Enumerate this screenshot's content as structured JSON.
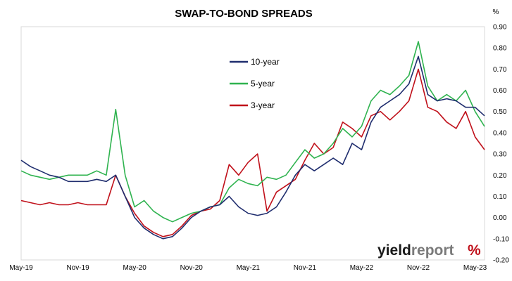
{
  "chart_data": {
    "type": "line",
    "title": "SWAP-TO-BOND SPREADS",
    "ylabel": "%",
    "ylim": [
      -0.2,
      0.9
    ],
    "yticks": [
      "-0.20",
      "-0.10",
      "0.00",
      "0.10",
      "0.20",
      "0.30",
      "0.40",
      "0.50",
      "0.60",
      "0.70",
      "0.80",
      "0.90"
    ],
    "x_labels": [
      "May-19",
      "Nov-19",
      "May-20",
      "Nov-20",
      "May-21",
      "Nov-21",
      "May-22",
      "Nov-22",
      "May-23"
    ],
    "x_range": [
      "2019-05",
      "2023-06"
    ],
    "grid": false,
    "legend_position": "top-left",
    "series": [
      {
        "name": "10-year",
        "color": "#1f2d6e",
        "x": [
          "2019-05",
          "2019-06",
          "2019-07",
          "2019-08",
          "2019-09",
          "2019-10",
          "2019-11",
          "2019-12",
          "2020-01",
          "2020-02",
          "2020-03",
          "2020-04",
          "2020-05",
          "2020-06",
          "2020-07",
          "2020-08",
          "2020-09",
          "2020-10",
          "2020-11",
          "2020-12",
          "2021-01",
          "2021-02",
          "2021-03",
          "2021-04",
          "2021-05",
          "2021-06",
          "2021-07",
          "2021-08",
          "2021-09",
          "2021-10",
          "2021-11",
          "2021-12",
          "2022-01",
          "2022-02",
          "2022-03",
          "2022-04",
          "2022-05",
          "2022-06",
          "2022-07",
          "2022-08",
          "2022-09",
          "2022-10",
          "2022-11",
          "2022-12",
          "2023-01",
          "2023-02",
          "2023-03",
          "2023-04",
          "2023-05",
          "2023-06"
        ],
        "values": [
          0.27,
          0.24,
          0.22,
          0.2,
          0.19,
          0.17,
          0.17,
          0.17,
          0.18,
          0.17,
          0.2,
          0.1,
          0.0,
          -0.05,
          -0.08,
          -0.1,
          -0.09,
          -0.05,
          0.0,
          0.03,
          0.05,
          0.06,
          0.1,
          0.05,
          0.02,
          0.01,
          0.02,
          0.05,
          0.12,
          0.2,
          0.25,
          0.22,
          0.25,
          0.28,
          0.25,
          0.35,
          0.32,
          0.45,
          0.52,
          0.55,
          0.58,
          0.63,
          0.76,
          0.58,
          0.55,
          0.56,
          0.55,
          0.52,
          0.52,
          0.48
        ]
      },
      {
        "name": "5-year",
        "color": "#2fb34f",
        "x": [
          "2019-05",
          "2019-06",
          "2019-07",
          "2019-08",
          "2019-09",
          "2019-10",
          "2019-11",
          "2019-12",
          "2020-01",
          "2020-02",
          "2020-03",
          "2020-04",
          "2020-05",
          "2020-06",
          "2020-07",
          "2020-08",
          "2020-09",
          "2020-10",
          "2020-11",
          "2020-12",
          "2021-01",
          "2021-02",
          "2021-03",
          "2021-04",
          "2021-05",
          "2021-06",
          "2021-07",
          "2021-08",
          "2021-09",
          "2021-10",
          "2021-11",
          "2021-12",
          "2022-01",
          "2022-02",
          "2022-03",
          "2022-04",
          "2022-05",
          "2022-06",
          "2022-07",
          "2022-08",
          "2022-09",
          "2022-10",
          "2022-11",
          "2022-12",
          "2023-01",
          "2023-02",
          "2023-03",
          "2023-04",
          "2023-05",
          "2023-06"
        ],
        "values": [
          0.22,
          0.2,
          0.19,
          0.18,
          0.19,
          0.2,
          0.2,
          0.2,
          0.22,
          0.2,
          0.51,
          0.2,
          0.05,
          0.08,
          0.03,
          0.0,
          -0.02,
          0.0,
          0.02,
          0.03,
          0.05,
          0.06,
          0.14,
          0.18,
          0.16,
          0.15,
          0.19,
          0.18,
          0.2,
          0.26,
          0.32,
          0.28,
          0.3,
          0.35,
          0.42,
          0.38,
          0.43,
          0.55,
          0.6,
          0.58,
          0.62,
          0.67,
          0.83,
          0.62,
          0.55,
          0.58,
          0.55,
          0.6,
          0.5,
          0.43
        ]
      },
      {
        "name": "3-year",
        "color": "#c0101a",
        "x": [
          "2019-05",
          "2019-06",
          "2019-07",
          "2019-08",
          "2019-09",
          "2019-10",
          "2019-11",
          "2019-12",
          "2020-01",
          "2020-02",
          "2020-03",
          "2020-04",
          "2020-05",
          "2020-06",
          "2020-07",
          "2020-08",
          "2020-09",
          "2020-10",
          "2020-11",
          "2020-12",
          "2021-01",
          "2021-02",
          "2021-03",
          "2021-04",
          "2021-05",
          "2021-06",
          "2021-07",
          "2021-08",
          "2021-09",
          "2021-10",
          "2021-11",
          "2021-12",
          "2022-01",
          "2022-02",
          "2022-03",
          "2022-04",
          "2022-05",
          "2022-06",
          "2022-07",
          "2022-08",
          "2022-09",
          "2022-10",
          "2022-11",
          "2022-12",
          "2023-01",
          "2023-02",
          "2023-03",
          "2023-04",
          "2023-05",
          "2023-06"
        ],
        "values": [
          0.08,
          0.07,
          0.06,
          0.07,
          0.06,
          0.06,
          0.07,
          0.06,
          0.06,
          0.06,
          0.2,
          0.1,
          0.02,
          -0.04,
          -0.07,
          -0.09,
          -0.08,
          -0.04,
          0.01,
          0.03,
          0.04,
          0.08,
          0.25,
          0.2,
          0.26,
          0.3,
          0.03,
          0.12,
          0.15,
          0.18,
          0.27,
          0.35,
          0.3,
          0.33,
          0.45,
          0.42,
          0.38,
          0.48,
          0.5,
          0.46,
          0.5,
          0.55,
          0.7,
          0.52,
          0.5,
          0.45,
          0.42,
          0.5,
          0.38,
          0.32
        ]
      }
    ]
  },
  "logo": {
    "text_dark": "yield",
    "text_light": "report",
    "symbol": "%"
  }
}
